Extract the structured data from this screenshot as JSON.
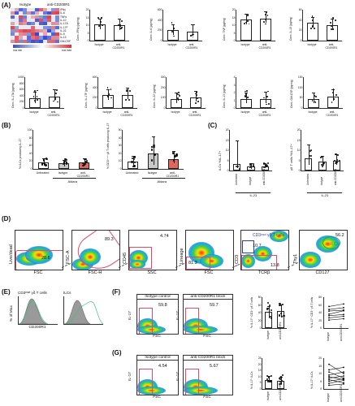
{
  "panelA": {
    "label": "(A)",
    "legend_isotype": "Isotype",
    "legend_anti": "anti-CD200R1",
    "heatmap_rows": [
      "IFNγ",
      "IL-6",
      "TNFα",
      "IL-10",
      "IL-17A",
      "IL-17F",
      "IL-22",
      "IL-5",
      "IL-13",
      "GM-CSF"
    ],
    "scale_min": "row min",
    "scale_max": "row max",
    "charts": [
      {
        "ylabel": "Conc. IFNγ (pg/mg)",
        "yticks": [
          "20",
          "15",
          "10",
          "5",
          "0"
        ]
      },
      {
        "ylabel": "Conc. IL-6 (pg/mg)",
        "yticks": [
          "600",
          "400",
          "200",
          "0"
        ]
      },
      {
        "ylabel": "Conc. TNF (pg/mg)",
        "yticks": [
          "20",
          "15",
          "10",
          "5",
          "0"
        ]
      },
      {
        "ylabel": "Conc. IL-10 (pg/mg)",
        "yticks": [
          "60",
          "40",
          "20",
          "0"
        ]
      },
      {
        "ylabel": "Conc. IL-17A (pg/mg)",
        "yticks": [
          "1000",
          "800",
          "600",
          "400",
          "200",
          "0"
        ]
      },
      {
        "ylabel": "Conc. IL-17F (pg/mg)",
        "yticks": [
          "600",
          "400",
          "200",
          "0"
        ]
      },
      {
        "ylabel": "Conc. IL-22 (pg/mg)",
        "yticks": [
          "300",
          "200",
          "100",
          "0"
        ]
      },
      {
        "ylabel": "Conc. IL-13 (pg/mg)",
        "yticks": [
          "4",
          "3",
          "2",
          "1",
          "0"
        ]
      },
      {
        "ylabel": "Conc. GM-CSF (pg/mg)",
        "yticks": [
          "150",
          "100",
          "50",
          "0"
        ]
      }
    ],
    "x_isotype": "Isotype",
    "x_anti": "anti-CD200R1"
  },
  "panelB": {
    "label": "(B)",
    "chart1_ylabel": "% ILCs producing IL-17",
    "chart1_yticks": [
      "100",
      "80",
      "60",
      "40",
      "20",
      "0"
    ],
    "chart2_ylabel": "% CD3⁺ᴸᵒʷ γδ T cells producing IL-17",
    "chart2_yticks": [
      "50",
      "40",
      "30",
      "20",
      "10",
      "0"
    ],
    "x_untreated": "Untreated",
    "x_isotype": "Isotype",
    "x_anti": "anti-CD200R1",
    "group_label": "Aldara"
  },
  "panelC": {
    "label": "(C)",
    "chart1_ylabel": "ILCs %IL-17+",
    "chart1_yticks": [
      "20",
      "15",
      "10",
      "5",
      "0"
    ],
    "chart2_ylabel": "γδ T cells %IL-17+",
    "chart2_yticks": [
      "20",
      "15",
      "10",
      "5",
      "0"
    ],
    "x_untreated": "Untreated",
    "x_isotype": "Isotype",
    "x_anti": "anti-CD200R1",
    "group_label": "IL-23"
  },
  "panelD": {
    "label": "(D)",
    "p1_y": "Live/dead",
    "p1_x": "FSC",
    "p1_val": "28.6",
    "p2_y": "FSC-A",
    "p2_x": "FSC-H",
    "p2_val": "89.3",
    "p3_y": "CD45",
    "p3_x": "SSC",
    "p3_val": "4.74",
    "p4_y": "Lineage",
    "p4_x": "FSC",
    "p4_val": "81.3",
    "p5_y": "CD3",
    "p5_x": "TCRβ",
    "p5_val1": "10.7",
    "p5_val2": "13.8",
    "p5_note": "CD3ᵐᵉᵈ γδ T cells",
    "p6_y": "Thy1",
    "p6_x": "CD127",
    "p6_val": "56.2",
    "p6_note": "ILCs"
  },
  "panelE": {
    "label": "(E)",
    "title1": "CD3ᵐᵉᵈ γδ T cells",
    "title2": "ILCs",
    "ylabel": "% of Max",
    "xlabel": "CD200R1"
  },
  "panelF": {
    "label": "(F)",
    "iso_title": "Isotype control",
    "iso_val": "59.8",
    "anti_title": "anti-CD200R1 block",
    "anti_val": "59.7",
    "ylab": "IL-17",
    "xlab": "FSC",
    "bar_ylabel": "% IL-17⁺ CD3⁺ γδ T cells",
    "bar_yticks": [
      "80",
      "60",
      "40",
      "20",
      "0"
    ],
    "pair_ylabel": "% IL-17⁺ CD3⁺ γδ T cells",
    "pair_yticks": [
      "80",
      "60",
      "40",
      "20",
      "0"
    ],
    "x_isotype": "Isotype",
    "x_anti": "anti-CD200R1"
  },
  "panelG": {
    "label": "(G)",
    "iso_title": "Isotype control",
    "iso_val": "4.54",
    "anti_title": "anti-CD200R1 block",
    "anti_val": "5.67",
    "ylab": "IL-17",
    "xlab": "FSC",
    "bar_ylabel": "% IL-17⁺ ILCs",
    "bar_yticks": [
      "25",
      "20",
      "15",
      "10",
      "5",
      "0"
    ],
    "pair_ylabel": "% IL-17⁺ ILCs",
    "pair_yticks": [
      "20",
      "15",
      "10",
      "5",
      "0"
    ],
    "x_isotype": "Isotype",
    "x_anti": "anti-CD200R1"
  },
  "colors": {
    "red": "#e0675e",
    "gray": "#c8c8c8",
    "blue": "#2a3f9a",
    "gate": "#e24a6a"
  }
}
